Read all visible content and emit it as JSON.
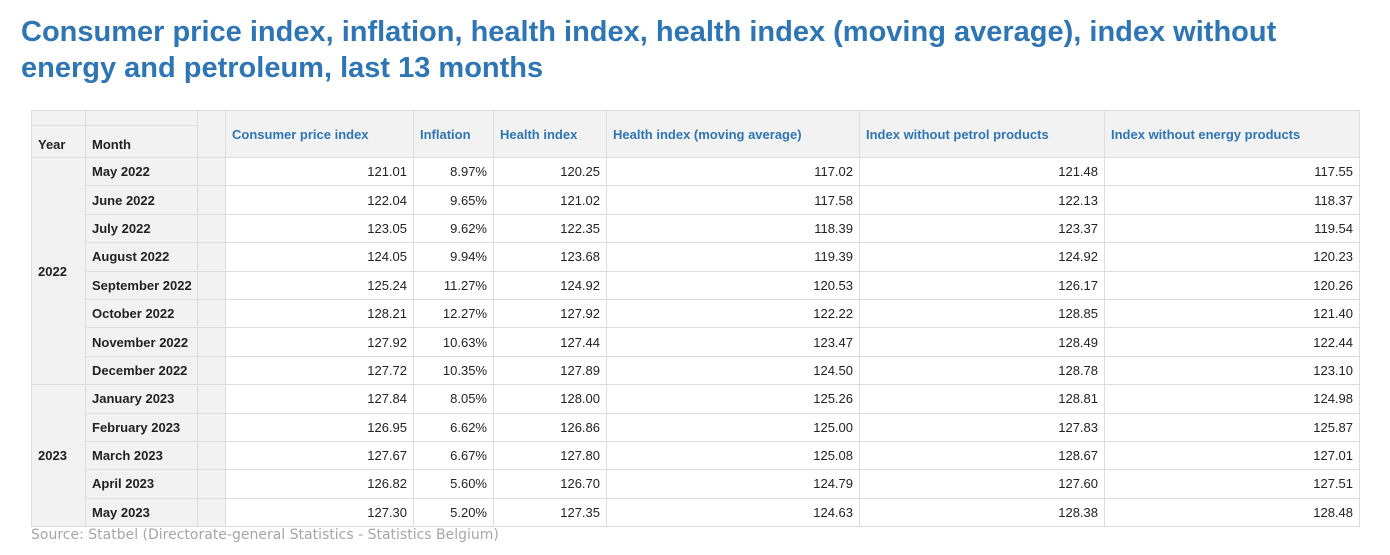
{
  "title": "Consumer price index, inflation, health index, health index (moving average), index without energy and petroleum, last 13 months",
  "source": "Source: Statbel (Directorate-general Statistics - Statistics Belgium)",
  "dim_headers": {
    "year": "Year",
    "month": "Month"
  },
  "columns": [
    "Consumer price index",
    "Inflation",
    "Health index",
    "Health index (moving average)",
    "Index without petrol products",
    "Index without energy products"
  ],
  "colors": {
    "header_text": "#2e75b6",
    "header_bg": "#f2f2f2",
    "source_text": "#a6a6a6"
  },
  "chart_data": {
    "type": "table",
    "title": "Consumer price index, inflation, health index, health index (moving average), index without energy and petroleum, last 13 months",
    "columns": [
      "Year",
      "Month",
      "Consumer price index",
      "Inflation",
      "Health index",
      "Health index (moving average)",
      "Index without petrol products",
      "Index without energy products"
    ],
    "groups": [
      {
        "year": "2022",
        "rows": [
          {
            "month": "May 2022",
            "values": [
              "121.01",
              "8.97%",
              "120.25",
              "117.02",
              "121.48",
              "117.55"
            ]
          },
          {
            "month": "June 2022",
            "values": [
              "122.04",
              "9.65%",
              "121.02",
              "117.58",
              "122.13",
              "118.37"
            ]
          },
          {
            "month": "July 2022",
            "values": [
              "123.05",
              "9.62%",
              "122.35",
              "118.39",
              "123.37",
              "119.54"
            ]
          },
          {
            "month": "August 2022",
            "values": [
              "124.05",
              "9.94%",
              "123.68",
              "119.39",
              "124.92",
              "120.23"
            ]
          },
          {
            "month": "September 2022",
            "values": [
              "125.24",
              "11.27%",
              "124.92",
              "120.53",
              "126.17",
              "120.26"
            ]
          },
          {
            "month": "October 2022",
            "values": [
              "128.21",
              "12.27%",
              "127.92",
              "122.22",
              "128.85",
              "121.40"
            ]
          },
          {
            "month": "November 2022",
            "values": [
              "127.92",
              "10.63%",
              "127.44",
              "123.47",
              "128.49",
              "122.44"
            ]
          },
          {
            "month": "December 2022",
            "values": [
              "127.72",
              "10.35%",
              "127.89",
              "124.50",
              "128.78",
              "123.10"
            ]
          }
        ]
      },
      {
        "year": "2023",
        "rows": [
          {
            "month": "January 2023",
            "values": [
              "127.84",
              "8.05%",
              "128.00",
              "125.26",
              "128.81",
              "124.98"
            ]
          },
          {
            "month": "February 2023",
            "values": [
              "126.95",
              "6.62%",
              "126.86",
              "125.00",
              "127.83",
              "125.87"
            ]
          },
          {
            "month": "March 2023",
            "values": [
              "127.67",
              "6.67%",
              "127.80",
              "125.08",
              "128.67",
              "127.01"
            ]
          },
          {
            "month": "April 2023",
            "values": [
              "126.82",
              "5.60%",
              "126.70",
              "124.79",
              "127.60",
              "127.51"
            ]
          },
          {
            "month": "May 2023",
            "values": [
              "127.30",
              "5.20%",
              "127.35",
              "124.63",
              "128.38",
              "128.48"
            ]
          }
        ]
      }
    ]
  }
}
